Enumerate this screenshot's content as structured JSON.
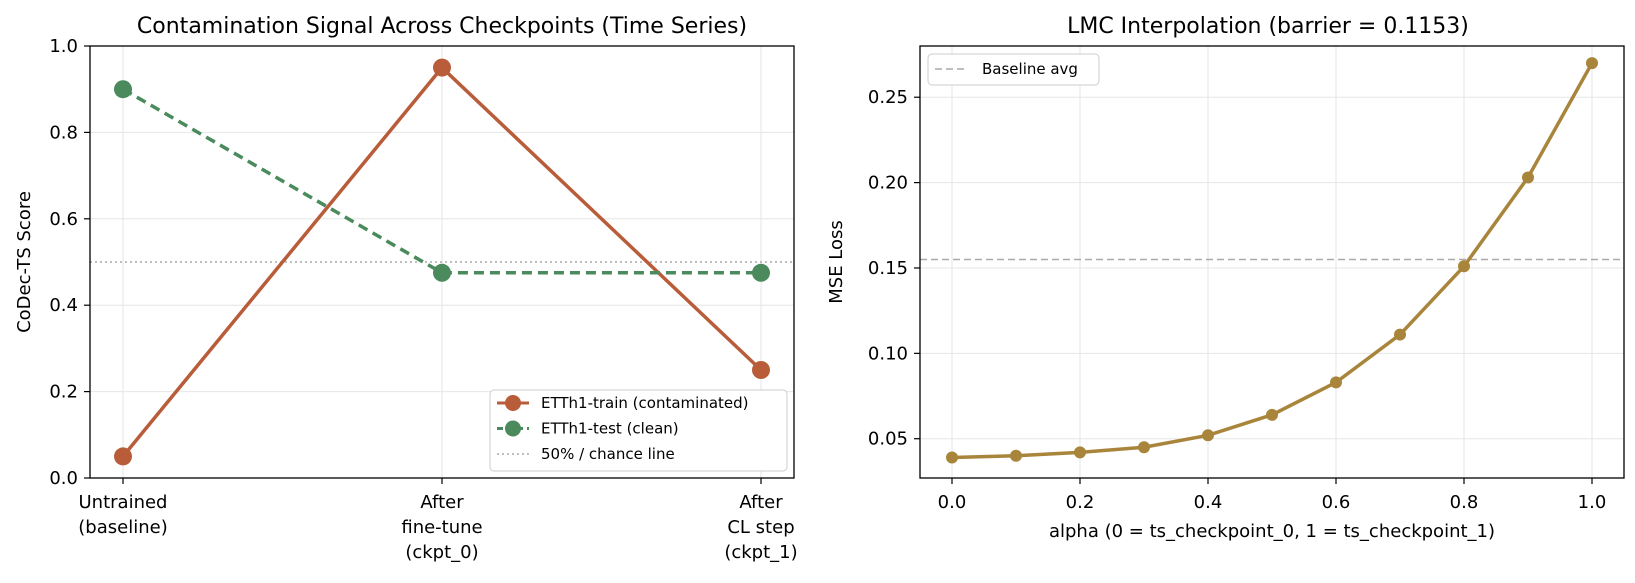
{
  "chart_data": [
    {
      "type": "line",
      "title": "Contamination Signal Across Checkpoints (Time Series)",
      "xlabel": "",
      "ylabel": "CoDec-TS Score",
      "categories": [
        [
          "Untrained",
          "(baseline)"
        ],
        [
          "After",
          "fine-tune",
          "(ckpt_0)"
        ],
        [
          "After",
          "CL step",
          "(ckpt_1)"
        ]
      ],
      "yticks": [
        "0.0",
        "0.2",
        "0.4",
        "0.6",
        "0.8",
        "1.0"
      ],
      "ylim": [
        0,
        1
      ],
      "grid": true,
      "series": [
        {
          "name": "ETTh1-train (contaminated)",
          "values": [
            0.05,
            0.95,
            0.25
          ],
          "color": "#b85c3a",
          "style": "solid"
        },
        {
          "name": "ETTh1-test (clean)",
          "values": [
            0.9,
            0.475,
            0.475
          ],
          "color": "#4a8a5c",
          "style": "dashed"
        }
      ],
      "reference_line": {
        "name": "50% / chance line",
        "value": 0.5,
        "color": "#aaaaaa",
        "style": "dotted"
      },
      "legend_position": "lower-right"
    },
    {
      "type": "line",
      "title": "LMC Interpolation  (barrier = 0.1153)",
      "xlabel": "alpha  (0 = ts_checkpoint_0,  1 = ts_checkpoint_1)",
      "ylabel": "MSE Loss",
      "x": [
        0.0,
        0.1,
        0.2,
        0.3,
        0.4,
        0.5,
        0.6,
        0.7,
        0.8,
        0.9,
        1.0
      ],
      "xticks": [
        "0.0",
        "0.2",
        "0.4",
        "0.6",
        "0.8",
        "1.0"
      ],
      "yticks": [
        "0.05",
        "0.10",
        "0.15",
        "0.20",
        "0.25"
      ],
      "xlim": [
        -0.05,
        1.05
      ],
      "ylim": [
        0.027,
        0.28
      ],
      "grid": true,
      "series": [
        {
          "name": "",
          "values": [
            0.039,
            0.04,
            0.042,
            0.045,
            0.052,
            0.064,
            0.083,
            0.111,
            0.151,
            0.203,
            0.27
          ],
          "color": "#a8853a",
          "style": "solid"
        }
      ],
      "reference_line": {
        "name": "Baseline avg",
        "value": 0.155,
        "color": "#aaaaaa",
        "style": "dashed"
      },
      "legend_position": "top-left"
    }
  ]
}
